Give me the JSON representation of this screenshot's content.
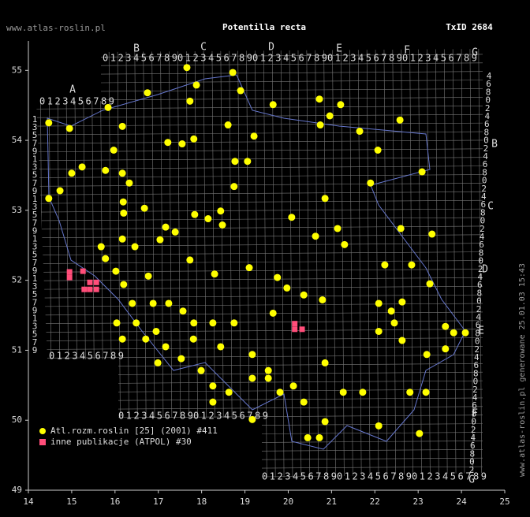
{
  "chart_data": {
    "type": "scatter",
    "site": "www.atlas-roslin.pl",
    "title": "Potentilla recta",
    "taxon_id": "TxID 2684",
    "footer": "www.atlas-roslin.pl generowane 25.01.03 15:43",
    "xlim": [
      14,
      25
    ],
    "xticks": [
      14,
      15,
      16,
      17,
      18,
      19,
      20,
      21,
      22,
      23,
      24,
      25
    ],
    "ylim": [
      49,
      55.42
    ],
    "yticks": [
      49,
      50,
      51,
      52,
      53,
      54,
      55
    ],
    "grid_labels": {
      "top_letters": [
        "A",
        "B",
        "C",
        "D",
        "E",
        "F",
        "G"
      ],
      "right_letters": [
        "B",
        "C",
        "D",
        "E",
        "F",
        "G"
      ],
      "digits": "0123456789",
      "left_digits": [
        "1",
        "3",
        "5",
        "7",
        "9"
      ],
      "right_digits": [
        "4",
        "6",
        "8",
        "0",
        "2"
      ]
    },
    "series": [
      {
        "name": "Atl.rozm.roslin [25] (2001) #411",
        "color": "#ffff00",
        "marker": "circle",
        "x": [
          14.47,
          14.95,
          15.84,
          16.17,
          16.75,
          17.66,
          17.88,
          17.73,
          18.72,
          18.9,
          18.61,
          19.21,
          19.65,
          20.72,
          21.21,
          20.96,
          20.74,
          21.65,
          22.07,
          22.58,
          14.47,
          14.73,
          15.0,
          15.24,
          15.78,
          16.17,
          16.33,
          15.97,
          16.19,
          16.2,
          16.68,
          17.22,
          17.55,
          17.82,
          17.84,
          18.15,
          18.44,
          18.48,
          18.75,
          18.77,
          19.06,
          17.17,
          17.39,
          17.04,
          15.68,
          15.78,
          16.17,
          16.46,
          16.02,
          16.2,
          16.77,
          17.73,
          18.3,
          19.1,
          19.75,
          19.97,
          19.65,
          20.36,
          20.79,
          21.14,
          21.3,
          20.63,
          20.08,
          20.85,
          21.9,
          22.6,
          22.23,
          22.85,
          23.27,
          23.32,
          23.09,
          22.09,
          22.38,
          22.63,
          22.45,
          22.09,
          22.63,
          23.63,
          23.82,
          23.63,
          23.2,
          16.4,
          16.88,
          17.24,
          17.57,
          16.04,
          16.49,
          16.95,
          17.82,
          18.26,
          18.75,
          16.17,
          16.71,
          17.17,
          17.81,
          18.44,
          16.99,
          17.53,
          17.99,
          18.26,
          18.26,
          18.63,
          19.17,
          19.54,
          19.17,
          19.54,
          19.81,
          20.12,
          19.17,
          20.36,
          20.85,
          21.27,
          21.72,
          22.09,
          22.81,
          23.18,
          23.03,
          20.85,
          20.45,
          20.72,
          24.09
        ],
        "values": [
          54.25,
          54.17,
          54.47,
          54.2,
          54.68,
          55.04,
          54.79,
          54.56,
          54.97,
          54.71,
          54.22,
          54.06,
          54.51,
          54.59,
          54.51,
          54.35,
          54.22,
          54.13,
          53.86,
          54.29,
          53.17,
          53.28,
          53.53,
          53.62,
          53.57,
          53.53,
          53.39,
          53.86,
          53.12,
          52.96,
          53.03,
          53.97,
          53.95,
          54.02,
          52.94,
          52.88,
          52.99,
          52.79,
          53.34,
          53.7,
          53.7,
          52.76,
          52.69,
          52.58,
          52.48,
          52.31,
          52.59,
          52.48,
          52.13,
          51.94,
          52.06,
          52.29,
          52.09,
          52.18,
          52.04,
          51.89,
          51.53,
          51.79,
          51.72,
          52.74,
          52.51,
          52.63,
          52.9,
          53.17,
          53.39,
          52.74,
          52.22,
          52.22,
          51.95,
          52.66,
          53.55,
          51.67,
          51.56,
          51.69,
          51.39,
          51.27,
          51.14,
          51.34,
          51.25,
          51.02,
          50.94,
          51.67,
          51.67,
          51.67,
          51.56,
          51.39,
          51.39,
          51.27,
          51.39,
          51.39,
          51.39,
          51.16,
          51.16,
          51.05,
          51.16,
          51.05,
          50.82,
          50.88,
          50.71,
          50.49,
          50.26,
          50.4,
          50.94,
          50.71,
          50.6,
          50.6,
          50.4,
          50.49,
          50.01,
          50.26,
          50.82,
          50.4,
          50.4,
          49.92,
          50.4,
          50.4,
          49.81,
          49.98,
          49.75,
          49.75,
          51.25
        ]
      },
      {
        "name": "inne publikacje (ATPOL) #30",
        "color": "#ff4d79",
        "marker": "square",
        "x": [
          14.95,
          14.95,
          15.26,
          15.29,
          15.42,
          15.57,
          15.42,
          15.57,
          20.15,
          20.32,
          20.15
        ],
        "values": [
          52.12,
          52.04,
          52.13,
          51.87,
          51.87,
          51.87,
          51.97,
          51.97,
          51.38,
          51.3,
          51.3
        ]
      }
    ]
  }
}
